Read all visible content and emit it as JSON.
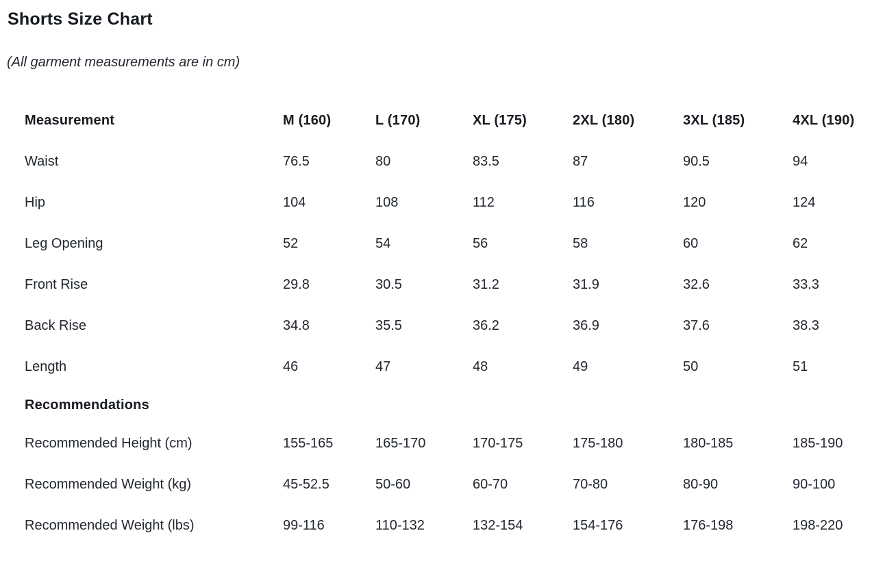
{
  "header": {
    "title": "Shorts Size Chart",
    "note": "(All garment measurements are in cm)"
  },
  "table": {
    "columns": [
      "Measurement",
      "M (160)",
      "L (170)",
      "XL (175)",
      "2XL (180)",
      "3XL (185)",
      "4XL (190)"
    ],
    "rows": [
      {
        "label": "Waist",
        "values": [
          "76.5",
          "80",
          "83.5",
          "87",
          "90.5",
          "94"
        ]
      },
      {
        "label": "Hip",
        "values": [
          "104",
          "108",
          "112",
          "116",
          "120",
          "124"
        ]
      },
      {
        "label": "Leg Opening",
        "values": [
          "52",
          "54",
          "56",
          "58",
          "60",
          "62"
        ]
      },
      {
        "label": "Front Rise",
        "values": [
          "29.8",
          "30.5",
          "31.2",
          "31.9",
          "32.6",
          "33.3"
        ]
      },
      {
        "label": "Back Rise",
        "values": [
          "34.8",
          "35.5",
          "36.2",
          "36.9",
          "37.6",
          "38.3"
        ]
      },
      {
        "label": "Length",
        "values": [
          "46",
          "47",
          "48",
          "49",
          "50",
          "51"
        ]
      }
    ],
    "section_label": "Recommendations",
    "recommendation_rows": [
      {
        "label": "Recommended Height (cm)",
        "values": [
          "155-165",
          "165-170",
          "170-175",
          "175-180",
          "180-185",
          "185-190"
        ]
      },
      {
        "label": "Recommended Weight (kg)",
        "values": [
          "45-52.5",
          "50-60",
          "60-70",
          "70-80",
          "80-90",
          "90-100"
        ]
      },
      {
        "label": "Recommended Weight (lbs)",
        "values": [
          "99-116",
          "110-132",
          "132-154",
          "154-176",
          "176-198",
          "198-220"
        ]
      }
    ]
  },
  "colors": {
    "background": "#ffffff",
    "body_text": "#232830",
    "heading_text": "#171b21"
  }
}
